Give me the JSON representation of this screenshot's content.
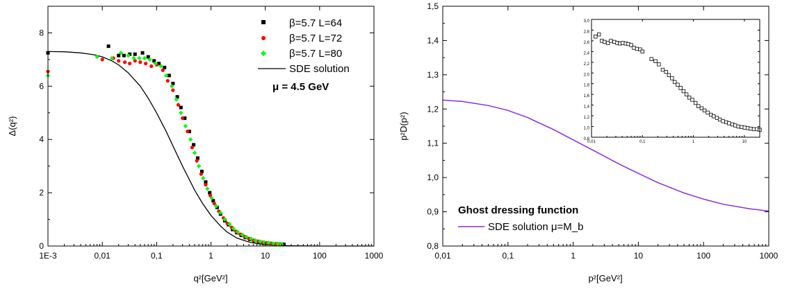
{
  "chart_data": [
    {
      "type": "scatter",
      "xscale": "log",
      "xlim": [
        0.001,
        1000
      ],
      "ylim": [
        0,
        9
      ],
      "xticks": [
        "1E-3",
        "0,01",
        "0,1",
        "1",
        "10",
        "100",
        "1000"
      ],
      "yticks": [
        "0",
        "2",
        "4",
        "6",
        "8"
      ],
      "xlabel": "q²[GeV²]",
      "ylabel": "Δ(q²)",
      "annotation": "μ = 4.5 GeV",
      "series": [
        {
          "name": "β=5.7  L=64",
          "marker": "square",
          "color": "#000000",
          "x": [
            0.001,
            0.013,
            0.02,
            0.025,
            0.032,
            0.04,
            0.055,
            0.07,
            0.09,
            0.11,
            0.14,
            0.17,
            0.2,
            0.24,
            0.28,
            0.33,
            0.4,
            0.48,
            0.57,
            0.68,
            0.8,
            0.95,
            1.1,
            1.3,
            1.5,
            1.8,
            2.1,
            2.5,
            3.0,
            3.6,
            4.3,
            5.2,
            6.3,
            7.6,
            9.2,
            11,
            13.5,
            16.5,
            20,
            22
          ],
          "y": [
            7.25,
            7.5,
            7.15,
            7.15,
            7.2,
            7.2,
            7.25,
            7.1,
            6.95,
            6.85,
            6.7,
            6.4,
            6.1,
            5.6,
            5.2,
            4.8,
            4.3,
            3.8,
            3.3,
            2.8,
            2.4,
            2.0,
            1.7,
            1.45,
            1.2,
            0.95,
            0.8,
            0.62,
            0.5,
            0.4,
            0.32,
            0.25,
            0.2,
            0.16,
            0.13,
            0.11,
            0.09,
            0.08,
            0.07,
            0.06
          ]
        },
        {
          "name": "β=5.7  L=72",
          "marker": "circle",
          "color": "#ff0000",
          "x": [
            0.001,
            0.01,
            0.016,
            0.02,
            0.026,
            0.032,
            0.04,
            0.05,
            0.063,
            0.08,
            0.1,
            0.13,
            0.16,
            0.2,
            0.25,
            0.3,
            0.37,
            0.45,
            0.55,
            0.66,
            0.8,
            0.97,
            1.15,
            1.4,
            1.7,
            2.0,
            2.4,
            2.9,
            3.5,
            4.2,
            5.0,
            6.0,
            7.3,
            8.8,
            10.6,
            12.8,
            15.5,
            18.5
          ],
          "y": [
            6.55,
            7.0,
            7.05,
            6.95,
            6.9,
            6.85,
            6.95,
            6.9,
            6.85,
            6.75,
            6.8,
            6.6,
            6.2,
            5.85,
            5.3,
            4.8,
            4.3,
            3.7,
            3.2,
            2.7,
            2.3,
            1.9,
            1.6,
            1.3,
            1.05,
            0.85,
            0.7,
            0.55,
            0.44,
            0.35,
            0.28,
            0.22,
            0.18,
            0.14,
            0.12,
            0.1,
            0.08,
            0.07
          ]
        },
        {
          "name": "β=5.7  L=80",
          "marker": "diamond",
          "color": "#00ff00",
          "x": [
            0.001,
            0.008,
            0.015,
            0.022,
            0.03,
            0.038,
            0.048,
            0.06,
            0.075,
            0.095,
            0.12,
            0.15,
            0.19,
            0.23,
            0.28,
            0.34,
            0.42,
            0.5,
            0.6,
            0.72,
            0.86,
            1.03,
            1.25,
            1.5,
            1.8,
            2.2,
            2.6,
            3.1,
            3.8,
            4.5,
            5.5,
            6.6,
            8.0,
            9.6,
            11.5,
            14,
            17,
            20
          ],
          "y": [
            6.4,
            7.1,
            7.05,
            7.25,
            7.15,
            7.05,
            7.05,
            7.05,
            7.0,
            6.85,
            6.75,
            6.4,
            6.0,
            5.5,
            5.0,
            4.5,
            4.0,
            3.5,
            3.0,
            2.55,
            2.15,
            1.8,
            1.5,
            1.25,
            1.0,
            0.82,
            0.66,
            0.53,
            0.42,
            0.34,
            0.27,
            0.21,
            0.17,
            0.14,
            0.12,
            0.1,
            0.08,
            0.07
          ]
        },
        {
          "name": "SDE solution",
          "type": "line",
          "color": "#000000",
          "x": [
            0.001,
            0.002,
            0.004,
            0.007,
            0.01,
            0.015,
            0.02,
            0.03,
            0.05,
            0.07,
            0.1,
            0.15,
            0.2,
            0.3,
            0.5,
            0.7,
            1,
            1.5,
            2,
            3,
            5,
            7,
            10,
            20,
            30,
            50,
            100,
            1000
          ],
          "y": [
            7.3,
            7.29,
            7.25,
            7.18,
            7.1,
            6.95,
            6.8,
            6.5,
            6.0,
            5.55,
            5.0,
            4.3,
            3.75,
            3.0,
            2.1,
            1.6,
            1.15,
            0.75,
            0.52,
            0.3,
            0.15,
            0.09,
            0.05,
            0.02,
            0.01,
            0.005,
            0.0,
            0.0
          ]
        }
      ]
    },
    {
      "type": "line",
      "xscale": "log",
      "xlim": [
        0.01,
        1000
      ],
      "ylim": [
        0.8,
        1.5
      ],
      "xticks": [
        "0,01",
        "0,1",
        "1",
        "10",
        "100",
        "1000"
      ],
      "yticks": [
        "0,8",
        "0,9",
        "1,0",
        "1,1",
        "1,2",
        "1,3",
        "1,4",
        "1,5"
      ],
      "xlabel": "p²[GeV²]",
      "ylabel": "p²D(p²)",
      "legend_title": "Ghost dressing function",
      "series": [
        {
          "name": "SDE solution μ=M_b",
          "color": "#8a2be2",
          "x": [
            0.01,
            0.02,
            0.05,
            0.1,
            0.2,
            0.5,
            1,
            2,
            5,
            10,
            20,
            50,
            100,
            200,
            500,
            1000
          ],
          "y": [
            1.226,
            1.222,
            1.21,
            1.196,
            1.175,
            1.14,
            1.11,
            1.08,
            1.04,
            1.012,
            0.985,
            0.955,
            0.937,
            0.922,
            0.909,
            0.902
          ]
        }
      ],
      "inset": {
        "type": "scatter",
        "xscale": "log",
        "xlim": [
          0.01,
          20
        ],
        "ylim": [
          0.8,
          3.0
        ],
        "xticks": [
          "0,01",
          "0,1",
          "1",
          "10"
        ],
        "yticks": [
          "0,8",
          "1,0",
          "1,2",
          "1,4",
          "1,6",
          "1,8",
          "2,0",
          "2,2",
          "2,4",
          "2,6",
          "2,8",
          "3,0"
        ],
        "marker": "open-square",
        "x": [
          0.012,
          0.014,
          0.016,
          0.018,
          0.021,
          0.024,
          0.028,
          0.032,
          0.036,
          0.041,
          0.047,
          0.053,
          0.06,
          0.068,
          0.078,
          0.09,
          0.1,
          0.15,
          0.18,
          0.21,
          0.25,
          0.29,
          0.33,
          0.38,
          0.43,
          0.49,
          0.56,
          0.64,
          0.73,
          0.83,
          0.95,
          1.1,
          1.25,
          1.45,
          1.65,
          1.9,
          2.2,
          2.5,
          2.9,
          3.3,
          3.8,
          4.4,
          5.0,
          5.8,
          6.6,
          7.6,
          8.8,
          10.1,
          11.6,
          13.3,
          15.3,
          17.5,
          20
        ],
        "y": [
          2.68,
          2.72,
          2.6,
          2.58,
          2.56,
          2.6,
          2.58,
          2.56,
          2.55,
          2.56,
          2.55,
          2.54,
          2.52,
          2.47,
          2.45,
          2.44,
          2.4,
          2.26,
          2.22,
          2.16,
          2.06,
          2.02,
          1.96,
          1.9,
          1.83,
          1.78,
          1.72,
          1.66,
          1.6,
          1.54,
          1.5,
          1.44,
          1.38,
          1.34,
          1.3,
          1.26,
          1.22,
          1.19,
          1.16,
          1.13,
          1.1,
          1.08,
          1.06,
          1.04,
          1.02,
          1.0,
          0.99,
          0.98,
          0.97,
          0.96,
          0.95,
          0.95,
          0.94
        ]
      }
    }
  ]
}
